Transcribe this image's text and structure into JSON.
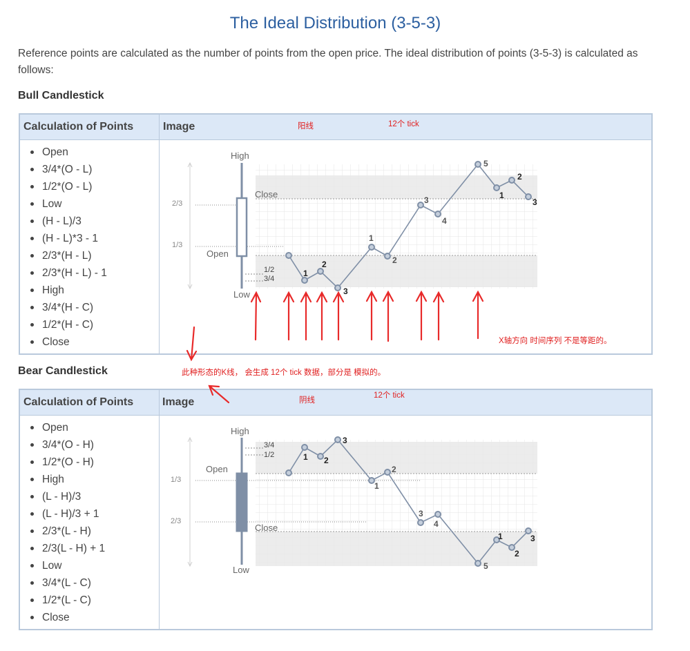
{
  "title": "The Ideal Distribution (3-5-3)",
  "intro": "Reference points are calculated as the number of points from the open price. The ideal distribution of points (3-5-3) is calculated as follows:",
  "bull": {
    "heading": "Bull Candlestick",
    "col1": "Calculation of Points",
    "col2": "Image",
    "points": [
      "Open",
      "3/4*(O - L)",
      "1/2*(O - L)",
      "Low",
      "(H - L)/3",
      "(H - L)*3 - 1",
      "2/3*(H - L)",
      "2/3*(H - L) - 1",
      "High",
      "3/4*(H - C)",
      "1/2*(H - C)",
      "Close"
    ],
    "chart": {
      "high": "High",
      "low": "Low",
      "open": "Open",
      "close": "Close",
      "frac_top": "2/3",
      "frac_bottom": "1/3",
      "half": "1/2",
      "three_quarter": "3/4"
    }
  },
  "bear": {
    "heading": "Bear Candlestick",
    "col1": "Calculation of Points",
    "col2": "Image",
    "points": [
      "Open",
      "3/4*(O - H)",
      "1/2*(O - H)",
      "High",
      "(L - H)/3",
      "(L - H)/3 + 1",
      "2/3*(L - H)",
      "2/3(L - H) + 1",
      "Low",
      "3/4*(L - C)",
      "1/2*(L - C)",
      "Close"
    ],
    "chart": {
      "high": "High",
      "low": "Low",
      "open": "Open",
      "close": "Close",
      "frac_top": "1/3",
      "frac_bottom": "2/3",
      "three_quarter": "3/4",
      "half": "1/2"
    }
  },
  "annotations": {
    "bull_label": "阳线",
    "bull_ticks": "12个  tick",
    "x_axis_note": "X轴方向 时间序列 不是等距的。",
    "kline_note": "此种形态的K线，  会生成 12个 tick 数据，部分是 模拟的。",
    "bear_label": "阴线",
    "bear_ticks": "12个 tick"
  },
  "point_labels": {
    "bull": [
      "1",
      "2",
      "3",
      "1",
      "2",
      "3",
      "4",
      "5",
      "1",
      "2",
      "3"
    ],
    "bear": [
      "1",
      "2",
      "3",
      "1",
      "2",
      "3",
      "4",
      "5",
      "1",
      "2",
      "3"
    ]
  },
  "colors": {
    "title": "#2c5fa0",
    "header_bg": "#dce8f7",
    "border": "#b9c9dc",
    "annotation": "#e02020",
    "line": "#7f8fa6"
  }
}
